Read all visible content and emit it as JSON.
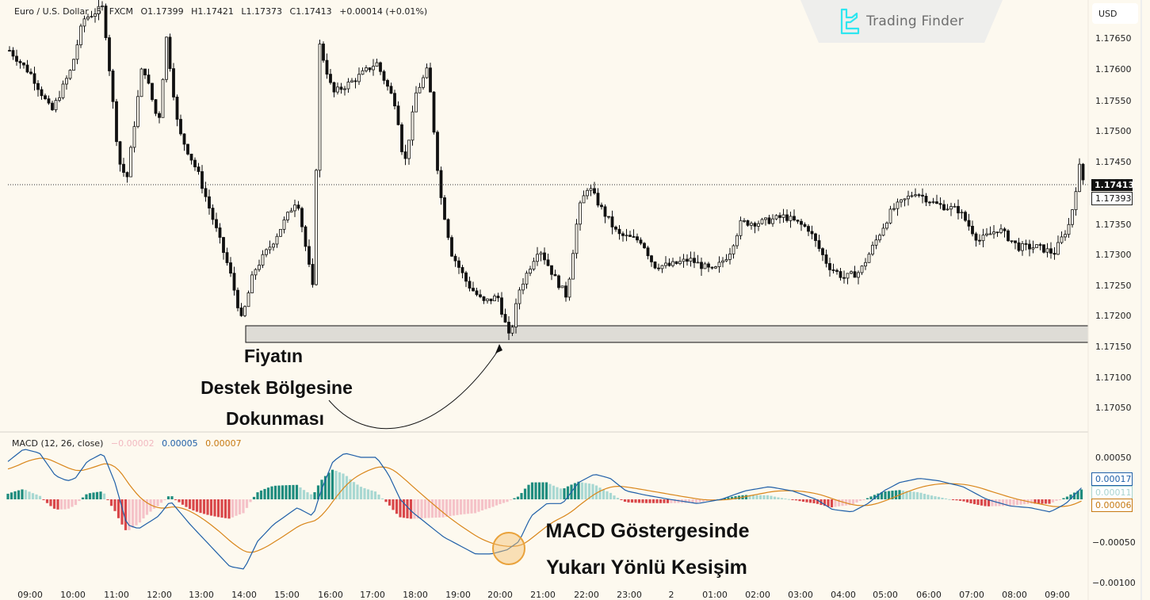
{
  "legend": {
    "symbol": "Euro / U.S. Dollar",
    "interval": "5",
    "exchange": "FXCM",
    "open": "O1.17399",
    "high": "H1.17421",
    "low": "L1.17373",
    "close": "C1.17413",
    "change": "+0.00014 (+0.01%)"
  },
  "logo": {
    "text": "Trading Finder",
    "icon": "trading-finder-logo-icon",
    "color": "#2ee6f0"
  },
  "currency_button": "USD",
  "price_axis": {
    "ticks": [
      "1.17650",
      "1.17600",
      "1.17550",
      "1.17500",
      "1.17450",
      "1.17350",
      "1.17300",
      "1.17250",
      "1.17200",
      "1.17150",
      "1.17100",
      "1.17050"
    ],
    "last_price": "1.17413",
    "prev_close": "1.17393"
  },
  "macd": {
    "title": "MACD (12, 26, close)",
    "hist_value": "−0.00002",
    "macd_value": "0.00005",
    "signal_value": "0.00007",
    "axis_ticks": [
      "0.00050",
      "−0.00050",
      "−0.00100"
    ],
    "tag_macd": "0.00017",
    "tag_hist": "0.00011",
    "tag_signal": "0.00006",
    "colors": {
      "macd": "#1f5fa8",
      "signal": "#d9861a",
      "hist_pos_strong": "#1e8c7e",
      "hist_pos_weak": "#a8d8d2",
      "hist_neg_strong": "#d9474a",
      "hist_neg_weak": "#f5c2c8"
    }
  },
  "time_axis": [
    "09:00",
    "10:00",
    "11:00",
    "12:00",
    "13:00",
    "14:00",
    "15:00",
    "16:00",
    "17:00",
    "18:00",
    "19:00",
    "20:00",
    "21:00",
    "22:00",
    "23:00",
    "2",
    "01:00",
    "02:00",
    "03:00",
    "04:00",
    "05:00",
    "06:00",
    "07:00",
    "08:00",
    "09:00"
  ],
  "annotations": {
    "support_line1": "Fiyatın",
    "support_line2": "Destek Bölgesine",
    "support_line3": "Dokunması",
    "macd_line1": "MACD Göstergesinde",
    "macd_line2": "Yukarı Yönlü Kesişim"
  },
  "chart_data": [
    {
      "type": "candlestick",
      "title": "Euro / U.S. Dollar · 5 · FXCM",
      "ylabel": "USD",
      "ylim": [
        1.17,
        1.177
      ],
      "support_zone": [
        1.17157,
        1.17183
      ],
      "last_price": 1.17413,
      "x": [
        "09:00",
        "10:00",
        "11:00",
        "12:00",
        "13:00",
        "14:00",
        "15:00",
        "16:00",
        "17:00",
        "18:00",
        "19:00",
        "20:00",
        "21:00",
        "22:00",
        "23:00",
        "2",
        "01:00",
        "02:00",
        "03:00",
        "04:00",
        "05:00",
        "06:00",
        "07:00",
        "08:00",
        "09:00"
      ],
      "approx_close_hourly": [
        1.176,
        1.1757,
        1.1766,
        1.1752,
        1.1738,
        1.172,
        1.1737,
        1.1752,
        1.176,
        1.1752,
        1.1728,
        1.1721,
        1.1731,
        1.1741,
        1.1731,
        1.1731,
        1.1734,
        1.1735,
        1.1735,
        1.1727,
        1.1735,
        1.1738,
        1.1735,
        1.1731,
        1.1741
      ]
    },
    {
      "type": "line",
      "title": "MACD (12, 26, close)",
      "ylim": [
        -0.0011,
        0.0007
      ],
      "series": [
        {
          "name": "MACD",
          "color": "#1f5fa8",
          "values": [
            0.0006,
            0.0004,
            0.0001,
            0.0004,
            -0.0002,
            -0.0009,
            -0.0004,
            0.0003,
            0.0006,
            0.0004,
            -0.0003,
            -0.0006,
            -0.0003,
            0.0001,
            0.0,
            0.0,
            0.0001,
            0.0001,
            0.0,
            -0.0002,
            -0.0001,
            0.0002,
            0.0001,
            0.0,
            0.0002
          ]
        },
        {
          "name": "Signal",
          "color": "#d9861a",
          "values": [
            0.0005,
            0.0005,
            0.0003,
            0.0003,
            0.0,
            -0.0008,
            -0.0006,
            0.0001,
            0.0005,
            0.0005,
            -0.0001,
            -0.0005,
            -0.0004,
            0.0,
            0.0002,
            0.0001,
            0.0001,
            0.0001,
            0.0001,
            -0.0001,
            -0.0001,
            0.0001,
            0.0001,
            -0.0001,
            0.0001
          ]
        },
        {
          "name": "Histogram",
          "values": [
            0.0001,
            -0.0001,
            -0.0002,
            0.0001,
            -0.0002,
            -0.0001,
            0.0002,
            0.0002,
            0.0001,
            -0.0001,
            -0.0002,
            -0.0001,
            0.0001,
            0.0001,
            -0.0001,
            -0.0001,
            0.0,
            0.0,
            -0.0001,
            -0.0001,
            0.0,
            0.0001,
            0.0,
            0.0001,
            0.0001
          ]
        }
      ],
      "annotations": [
        "Upward crossover near 20:00"
      ]
    }
  ]
}
